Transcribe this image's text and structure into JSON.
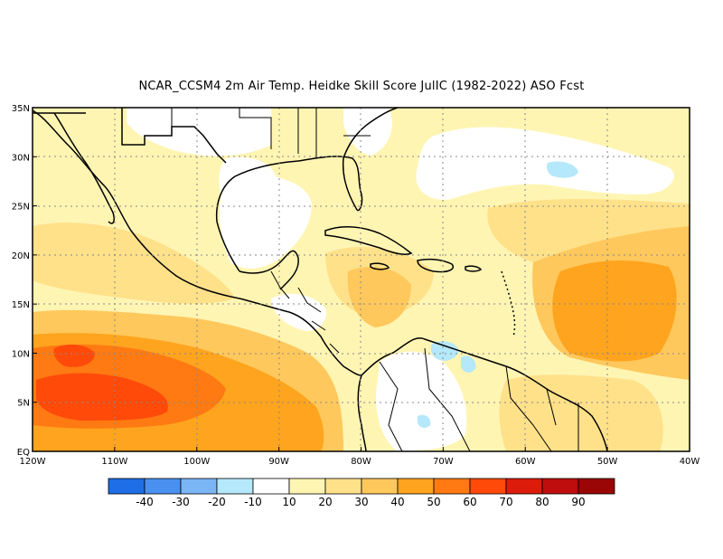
{
  "title": "NCAR_CCSM4  2m Air Temp. Heidke Skill Score JulIC (1982-2022) ASO Fcst",
  "map": {
    "lat_labels": [
      "35N",
      "30N",
      "25N",
      "20N",
      "15N",
      "10N",
      "5N",
      "EQ"
    ],
    "lon_labels": [
      "120W",
      "110W",
      "100W",
      "90W",
      "80W",
      "70W",
      "60W",
      "50W",
      "40W"
    ],
    "lon_range": [
      -120,
      -40
    ],
    "lat_range": [
      0,
      35
    ],
    "gridlines": "dotted"
  },
  "colorbar": {
    "labels": [
      "-40",
      "-30",
      "-20",
      "-10",
      "10",
      "20",
      "30",
      "40",
      "50",
      "60",
      "70",
      "80",
      "90"
    ],
    "colors": [
      "#1e6ee6",
      "#4a90ef",
      "#7ab5f5",
      "#b4e8fa",
      "#ffffff",
      "#fff5b3",
      "#ffe18a",
      "#ffc85c",
      "#ffa41e",
      "#ff7a12",
      "#ff4a0a",
      "#dd1b0b",
      "#bf0c0c",
      "#9a0505"
    ]
  }
}
